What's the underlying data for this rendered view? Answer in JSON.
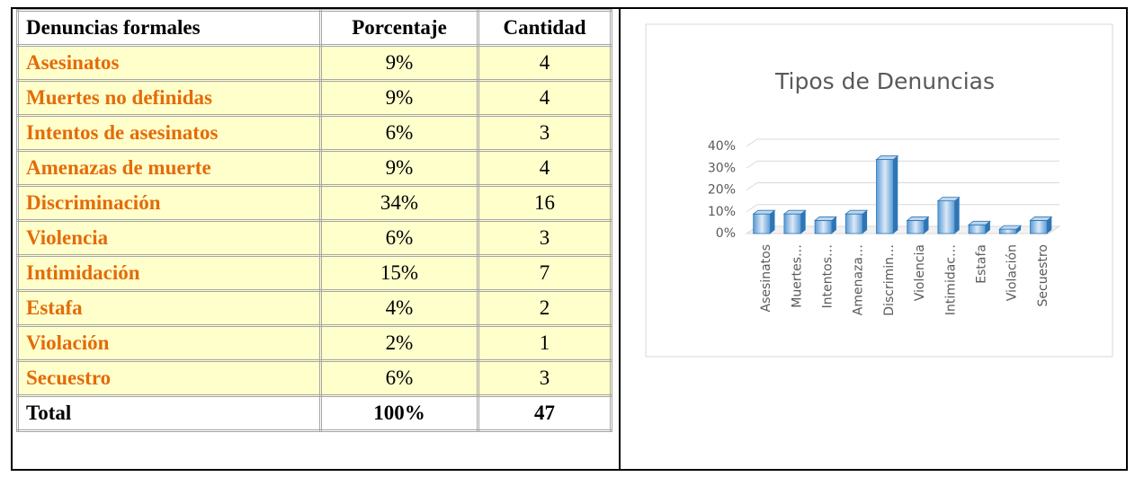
{
  "table": {
    "header": [
      "Denuncias formales",
      "Porcentaje",
      "Cantidad"
    ],
    "rows": [
      [
        "Asesinatos",
        "9%",
        4
      ],
      [
        "Muertes no definidas",
        "9%",
        4
      ],
      [
        "Intentos de asesinatos",
        "6%",
        3
      ],
      [
        "Amenazas de muerte",
        "9%",
        4
      ],
      [
        "Discriminación",
        "34%",
        16
      ],
      [
        "Violencia",
        "6%",
        3
      ],
      [
        "Intimidación",
        "15%",
        7
      ],
      [
        "Estafa",
        "4%",
        2
      ],
      [
        "Violación",
        "2%",
        1
      ],
      [
        "Secuestro",
        "6%",
        3
      ]
    ],
    "total": [
      "Total",
      "100%",
      47
    ]
  },
  "chart_data": {
    "type": "bar",
    "title": "Tipos de Denuncias",
    "categories": [
      "Asesinatos",
      "Muertes…",
      "Intentos…",
      "Amenaza…",
      "Discrimin…",
      "Violencia",
      "Intimidac…",
      "Estafa",
      "Violación",
      "Secuestro"
    ],
    "values": [
      9,
      9,
      6,
      9,
      34,
      6,
      15,
      4,
      2,
      6
    ],
    "color": "#9dc3e6",
    "ylim": [
      0,
      40
    ],
    "yticks": [
      {
        "value": 0,
        "label": "0%"
      },
      {
        "value": 10,
        "label": "10%"
      },
      {
        "value": 20,
        "label": "20%"
      },
      {
        "value": 30,
        "label": "30%"
      },
      {
        "value": 40,
        "label": "40%"
      }
    ],
    "grid": true
  }
}
